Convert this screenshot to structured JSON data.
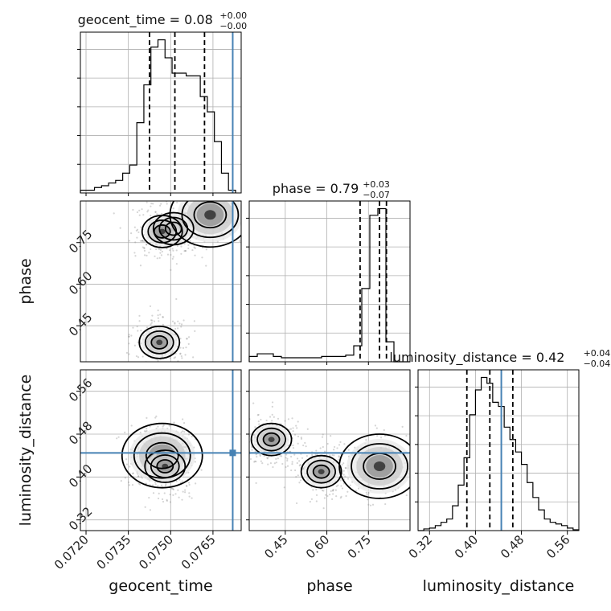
{
  "chart_data": {
    "type": "corner",
    "parameters": [
      "geocent_time",
      "phase",
      "luminosity_distance"
    ],
    "truth": {
      "geocent_time": 0.0772,
      "phase": null,
      "luminosity_distance": 0.445
    },
    "truth_color": "#4682b4",
    "panels": [
      {
        "id": "hist_geocent_time",
        "kind": "histogram",
        "param": "geocent_time",
        "title": {
          "main": "geocent_time = 0.08",
          "sup": "+0.00",
          "sub": "−0.00"
        },
        "xlim": [
          0.0718,
          0.0775
        ],
        "bin_edges": [
          0.0718,
          0.07205,
          0.0723,
          0.07255,
          0.0728,
          0.07305,
          0.0733,
          0.07355,
          0.0738,
          0.07405,
          0.0743,
          0.07455,
          0.0748,
          0.07505,
          0.0753,
          0.07555,
          0.0758,
          0.07605,
          0.0763,
          0.07655,
          0.0768,
          0.07705,
          0.0773
        ],
        "counts": [
          3,
          3,
          6,
          8,
          11,
          14,
          22,
          31,
          78,
          120,
          162,
          170,
          150,
          133,
          133,
          130,
          130,
          107,
          90,
          57,
          22,
          3
        ],
        "quantile_lines": [
          0.07425,
          0.07515,
          0.0762
        ]
      },
      {
        "id": "scatter_geocent_time_phase",
        "kind": "2d-density",
        "x": "geocent_time",
        "y": "phase",
        "xlim": [
          0.0718,
          0.0775
        ],
        "ylim": [
          0.32,
          0.9
        ],
        "modes": [
          {
            "x": 0.0764,
            "y": 0.85
          },
          {
            "x": 0.0751,
            "y": 0.8
          },
          {
            "x": 0.0747,
            "y": 0.79
          },
          {
            "x": 0.0746,
            "y": 0.39
          }
        ]
      },
      {
        "id": "scatter_geocent_time_luminosity_distance",
        "kind": "2d-density",
        "x": "geocent_time",
        "y": "luminosity_distance",
        "xlim": [
          0.0718,
          0.0775
        ],
        "ylim": [
          0.3,
          0.6
        ],
        "modes": [
          {
            "x": 0.0747,
            "y": 0.44
          },
          {
            "x": 0.0748,
            "y": 0.42
          }
        ]
      },
      {
        "id": "hist_phase",
        "kind": "histogram",
        "param": "phase",
        "title": {
          "main": "phase = 0.79",
          "sup": "+0.03",
          "sub": "−0.07"
        },
        "xlim": [
          0.32,
          0.9
        ],
        "bin_edges": [
          0.32,
          0.349,
          0.378,
          0.407,
          0.436,
          0.465,
          0.494,
          0.523,
          0.552,
          0.581,
          0.61,
          0.639,
          0.668,
          0.697,
          0.726,
          0.755,
          0.784,
          0.813,
          0.842,
          0.871,
          0.9
        ],
        "counts": [
          4,
          6,
          6,
          4,
          3,
          3,
          3,
          3,
          3,
          4,
          4,
          4,
          5,
          12,
          55,
          110,
          115,
          15,
          0,
          0
        ],
        "quantile_lines": [
          0.72,
          0.79,
          0.815
        ]
      },
      {
        "id": "scatter_phase_luminosity_distance",
        "kind": "2d-density",
        "x": "phase",
        "y": "luminosity_distance",
        "xlim": [
          0.32,
          0.9
        ],
        "ylim": [
          0.3,
          0.6
        ],
        "modes": [
          {
            "x": 0.79,
            "y": 0.42
          },
          {
            "x": 0.4,
            "y": 0.47
          },
          {
            "x": 0.58,
            "y": 0.41
          }
        ]
      },
      {
        "id": "hist_luminosity_distance",
        "kind": "histogram",
        "param": "luminosity_distance",
        "title": {
          "main": "luminosity_distance = 0.42",
          "sup": "+0.04",
          "sub": "−0.04"
        },
        "xlim": [
          0.3,
          0.58
        ],
        "bin_edges": [
          0.3,
          0.31,
          0.32,
          0.33,
          0.34,
          0.35,
          0.36,
          0.37,
          0.38,
          0.39,
          0.4,
          0.41,
          0.42,
          0.43,
          0.44,
          0.45,
          0.46,
          0.47,
          0.48,
          0.49,
          0.5,
          0.51,
          0.52,
          0.53,
          0.54,
          0.55,
          0.56,
          0.57,
          0.58
        ],
        "counts": [
          0,
          2,
          3,
          6,
          10,
          14,
          30,
          55,
          88,
          140,
          170,
          185,
          178,
          155,
          150,
          125,
          110,
          95,
          80,
          58,
          40,
          25,
          14,
          10,
          8,
          6,
          3,
          1
        ],
        "quantile_lines": [
          0.385,
          0.425,
          0.465
        ]
      }
    ],
    "xticks": {
      "geocent_time": [
        "0.0720",
        "0.0735",
        "0.0750",
        "0.0765"
      ],
      "phase": [
        "0.45",
        "0.60",
        "0.75"
      ],
      "luminosity_distance": [
        "0.32",
        "0.40",
        "0.48",
        "0.56"
      ]
    },
    "yticks": {
      "phase": [
        "0.45",
        "0.60",
        "0.75"
      ],
      "luminosity_distance": [
        "0.32",
        "0.40",
        "0.48",
        "0.56"
      ]
    },
    "xlabels": [
      "geocent_time",
      "phase",
      "luminosity_distance"
    ],
    "ylabels": [
      "phase",
      "luminosity_distance"
    ],
    "grid": true
  }
}
